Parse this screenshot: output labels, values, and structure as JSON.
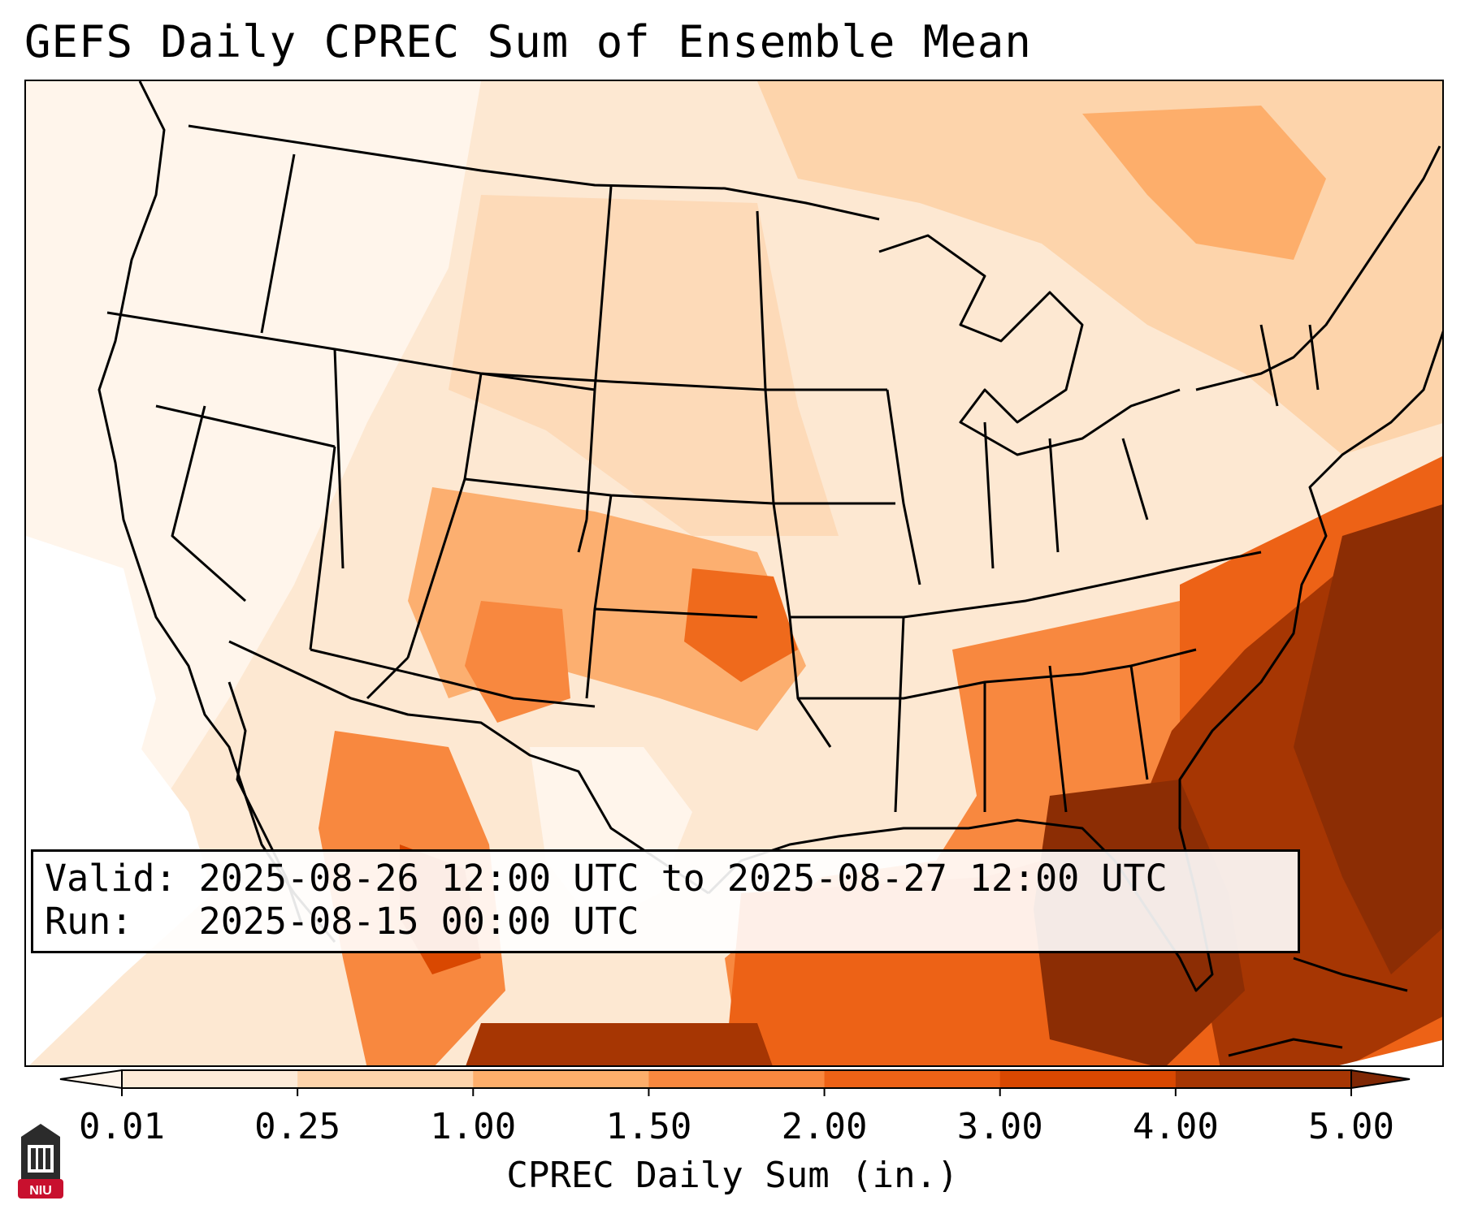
{
  "title": "GEFS Daily CPREC Sum of Ensemble Mean",
  "info": {
    "valid_line": "Valid: 2025-08-26 12:00 UTC to 2025-08-27 12:00 UTC",
    "run_line": "Run:   2025-08-15 00:00 UTC"
  },
  "colorbar": {
    "label": "CPREC Daily Sum (in.)",
    "ticks": [
      "0.01",
      "0.25",
      "1.00",
      "1.50",
      "2.00",
      "3.00",
      "4.00",
      "5.00"
    ],
    "colors": [
      "#fdebd8",
      "#fdd4ab",
      "#fdae6b",
      "#f8883f",
      "#ed6216",
      "#d94801",
      "#a63603",
      "#8c2d04"
    ],
    "under_color": "#fff5eb",
    "over_color": "#7f2704"
  },
  "map_colors": {
    "land_base": "#fdead6",
    "light": "#fff5eb",
    "pale": "#fde3c8",
    "peach": "#fdc591",
    "orange": "#fb9a54",
    "deep_orange": "#ef6a1c",
    "burnt": "#d45205",
    "dark": "#8c2d04",
    "white_area": "#ffffff"
  },
  "logo": {
    "text": "NIU",
    "color": "#c8102e"
  }
}
